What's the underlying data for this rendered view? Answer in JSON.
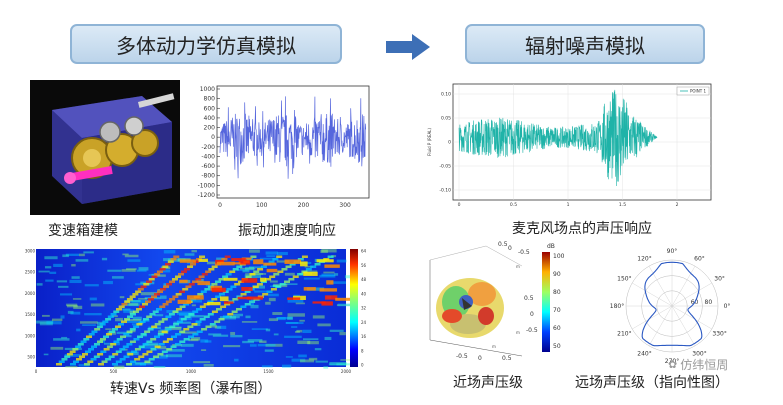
{
  "headers": {
    "left_title": "多体动力学仿真模拟",
    "right_title": "辐射噪声模拟"
  },
  "captions": {
    "gearbox_model": "变速箱建模",
    "vibration_response": "振动加速度响应",
    "mic_pressure_response": "麦克风场点的声压响应",
    "waterfall": "转速Vs 频率图（瀑布图）",
    "near_field": "近场声压级",
    "far_field": "远场声压级（指向性图）"
  },
  "watermark": "仿纬恒周",
  "vibration_chart": {
    "type": "line",
    "ylim": [
      -1200,
      1000
    ],
    "xlim": [
      0,
      350
    ],
    "y_ticks": [
      "1000",
      "800",
      "600",
      "400",
      "200",
      "0",
      "-200",
      "-400",
      "-600",
      "-800",
      "-1000",
      "-1200"
    ],
    "x_ticks": [
      "0",
      "100",
      "200",
      "300"
    ],
    "color": "#5566dd"
  },
  "mic_chart": {
    "type": "line",
    "ylabel": "Fluid P (REAL)",
    "legend": "POINT 1",
    "y_ticks": [
      "0.10",
      "0.05",
      "0",
      "-0.05",
      "-0.10"
    ],
    "x_ticks": [
      "0",
      "0.5",
      "1",
      "1.5",
      "2"
    ],
    "color": "#1fb3a8"
  },
  "waterfall_chart": {
    "type": "heatmap",
    "y_ticks": [
      "3000",
      "2500",
      "2000",
      "1500",
      "1000",
      "500"
    ],
    "x_ticks": [
      "0",
      "500",
      "1000",
      "1500",
      "2000"
    ],
    "colorbar_ticks": [
      "64",
      "56",
      "48",
      "40",
      "32",
      "24",
      "16",
      "8",
      "0"
    ]
  },
  "near_field_chart": {
    "colorbar_label": "dB",
    "colorbar_ticks": [
      "100",
      "90",
      "80",
      "70",
      "60",
      "50"
    ],
    "axis_ticks": [
      "0.5",
      "0",
      "-0.5",
      "0.5",
      "0",
      "-0.5",
      "-0.5",
      "0",
      "0.5"
    ],
    "axis_letters": [
      "m",
      "m",
      "m"
    ]
  },
  "far_field_chart": {
    "type": "polar",
    "angle_labels": [
      "90°",
      "60°",
      "30°",
      "0°",
      "330°",
      "300°",
      "270°",
      "240°",
      "210°",
      "180°",
      "150°",
      "120°"
    ],
    "radial_labels": [
      "80",
      "60"
    ]
  },
  "colors": {
    "header_fill": "#c9ddef",
    "header_border": "#8fb4d6",
    "arrow": "#3d6fb6"
  }
}
